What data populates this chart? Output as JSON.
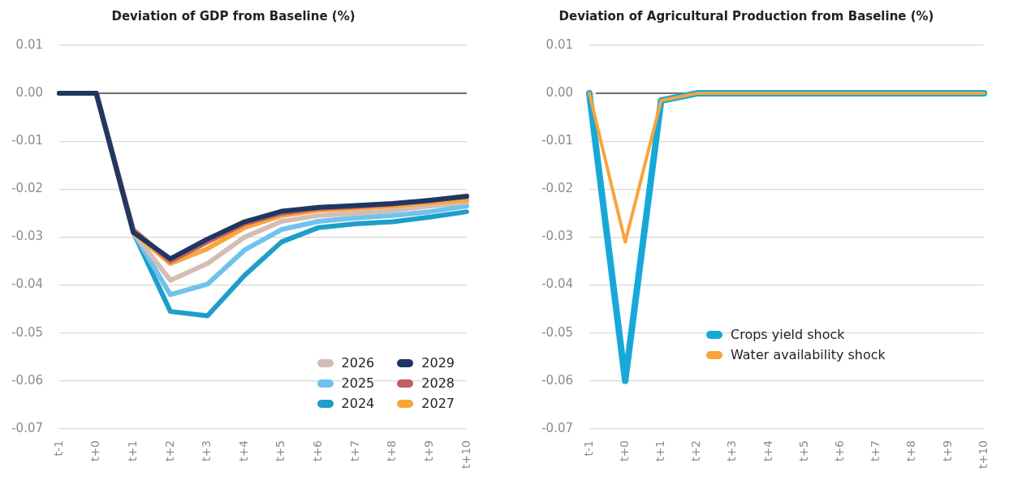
{
  "chart_data": [
    {
      "type": "line",
      "title": "Deviation of GDP from Baseline (%)",
      "categories": [
        "t-1",
        "t+0",
        "t+1",
        "t+2",
        "t+3",
        "t+4",
        "t+5",
        "t+6",
        "t+7",
        "t+8",
        "t+9",
        "t+10"
      ],
      "series": [
        {
          "name": "2024",
          "color": "#1e9ec9",
          "values": [
            0,
            0,
            -0.029,
            -0.0455,
            -0.0464,
            -0.038,
            -0.031,
            -0.028,
            -0.0272,
            -0.0268,
            -0.0258,
            -0.0247
          ]
        },
        {
          "name": "2025",
          "color": "#6ec3ec",
          "values": [
            0,
            0,
            -0.029,
            -0.042,
            -0.0398,
            -0.0327,
            -0.0284,
            -0.0267,
            -0.026,
            -0.0255,
            -0.0247,
            -0.0235
          ]
        },
        {
          "name": "2026",
          "color": "#d4bdb3",
          "values": [
            0,
            0,
            -0.029,
            -0.039,
            -0.0355,
            -0.03,
            -0.0267,
            -0.0255,
            -0.025,
            -0.0245,
            -0.0235,
            -0.0227
          ]
        },
        {
          "name": "2027",
          "color": "#f9a53a",
          "values": [
            0,
            0,
            -0.029,
            -0.0355,
            -0.0324,
            -0.028,
            -0.0255,
            -0.0244,
            -0.024,
            -0.0235,
            -0.0228,
            -0.0222
          ]
        },
        {
          "name": "2028",
          "color": "#c0605f",
          "values": [
            0,
            0,
            -0.0285,
            -0.035,
            -0.031,
            -0.0272,
            -0.025,
            -0.024,
            -0.0236,
            -0.0231,
            -0.0224,
            -0.0214
          ]
        },
        {
          "name": "2029",
          "color": "#1e3763",
          "values": [
            0,
            0,
            -0.029,
            -0.0345,
            -0.0304,
            -0.0268,
            -0.0246,
            -0.0238,
            -0.0234,
            -0.023,
            -0.0223,
            -0.0215
          ]
        }
      ],
      "ylim": [
        -0.07,
        0.01
      ],
      "yticks": [
        {
          "value": -0.07,
          "label": "-0.07"
        },
        {
          "value": -0.06,
          "label": "-0.06"
        },
        {
          "value": -0.05,
          "label": "-0.05"
        },
        {
          "value": -0.04,
          "label": "-0.04"
        },
        {
          "value": -0.03,
          "label": "-0.03"
        },
        {
          "value": -0.02,
          "label": "-0.02"
        },
        {
          "value": -0.01,
          "label": "-0.01"
        },
        {
          "value": 0,
          "label": "0.00"
        },
        {
          "value": 0.01,
          "label": "0.01"
        }
      ],
      "ref_lines": [
        {
          "axis": "y",
          "value": 0,
          "color": "#707070"
        }
      ],
      "grid": "y",
      "legend": "bottom right",
      "marker": "none",
      "line_style": "solid"
    },
    {
      "type": "line",
      "title": "Deviation of Agricultural Production from Baseline (%)",
      "categories": [
        "t-1",
        "t+0",
        "t+1",
        "t+2",
        "t+3",
        "t+4",
        "t+5",
        "t+6",
        "t+7",
        "t+8",
        "t+9",
        "t+10"
      ],
      "series": [
        {
          "name": "Crops yield shock",
          "color": "#16a9d8",
          "values": [
            0,
            -0.06,
            -0.0015,
            0,
            0,
            0,
            0,
            0,
            0,
            0,
            0,
            0
          ]
        },
        {
          "name": "Water availability shock",
          "color": "#f8a43a",
          "values": [
            0,
            -0.031,
            -0.0015,
            0,
            0,
            0,
            0,
            0,
            0,
            0,
            0,
            0
          ]
        }
      ],
      "ylim": [
        -0.07,
        0.01
      ],
      "yticks": [
        {
          "value": -0.07,
          "label": "-0.07"
        },
        {
          "value": -0.06,
          "label": "-0.06"
        },
        {
          "value": -0.05,
          "label": "-0.05"
        },
        {
          "value": -0.04,
          "label": "-0.04"
        },
        {
          "value": -0.03,
          "label": "-0.03"
        },
        {
          "value": -0.02,
          "label": "-0.02"
        },
        {
          "value": -0.01,
          "label": "-0.01"
        },
        {
          "value": 0,
          "label": "0.00"
        },
        {
          "value": 0.01,
          "label": "0.01"
        }
      ],
      "ref_lines": [
        {
          "axis": "y",
          "value": 0,
          "color": "#707070"
        }
      ],
      "grid": "y",
      "legend": "bottom right",
      "marker": "none",
      "line_style": "solid"
    }
  ]
}
